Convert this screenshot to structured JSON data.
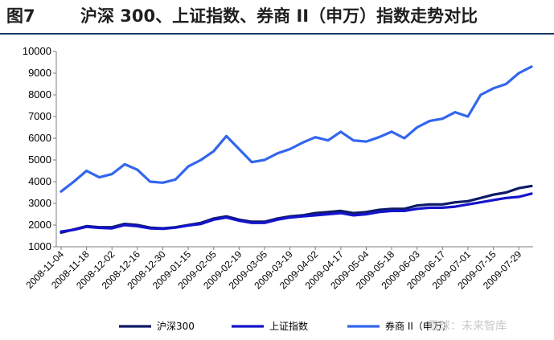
{
  "figure_label": "图7",
  "chart_data": {
    "type": "line",
    "title": "沪深 300、上证指数、券商 II（申万）指数走势对比",
    "xlabel": "",
    "ylabel": "",
    "ylim": [
      1000,
      10000
    ],
    "yticks": [
      1000,
      2000,
      3000,
      4000,
      5000,
      6000,
      7000,
      8000,
      9000,
      10000
    ],
    "x": [
      "2008-11-04",
      "2008-11-11",
      "2008-11-18",
      "2008-11-25",
      "2008-12-02",
      "2008-12-09",
      "2008-12-16",
      "2008-12-23",
      "2008-12-30",
      "2009-01-08",
      "2009-01-15",
      "2009-01-22",
      "2009-02-05",
      "2009-02-12",
      "2009-02-19",
      "2009-02-26",
      "2009-03-05",
      "2009-03-12",
      "2009-03-19",
      "2009-03-26",
      "2009-04-02",
      "2009-04-09",
      "2009-04-17",
      "2009-04-24",
      "2009-05-04",
      "2009-05-11",
      "2009-05-18",
      "2009-05-25",
      "2009-06-03",
      "2009-06-10",
      "2009-06-17",
      "2009-06-24",
      "2009-07-01",
      "2009-07-08",
      "2009-07-15",
      "2009-07-22",
      "2009-07-29",
      "2009-08-03"
    ],
    "xticks": [
      "2008-11-04",
      "2008-11-18",
      "2008-12-02",
      "2008-12-16",
      "2008-12-30",
      "2009-01-15",
      "2009-02-05",
      "2009-02-19",
      "2009-03-05",
      "2009-03-19",
      "2009-04-02",
      "2009-04-17",
      "2009-05-04",
      "2009-05-18",
      "2009-06-03",
      "2009-06-17",
      "2009-07-01",
      "2009-07-15",
      "2009-07-29"
    ],
    "series": [
      {
        "name": "沪深300",
        "color": "#0d1a66",
        "values": [
          1650,
          1800,
          1950,
          1900,
          1900,
          2050,
          2000,
          1880,
          1850,
          1900,
          2000,
          2100,
          2300,
          2400,
          2250,
          2150,
          2150,
          2300,
          2400,
          2450,
          2550,
          2600,
          2650,
          2550,
          2600,
          2700,
          2750,
          2750,
          2900,
          2950,
          2950,
          3050,
          3100,
          3250,
          3400,
          3500,
          3700,
          3800
        ]
      },
      {
        "name": "上证指数",
        "color": "#1414cc",
        "values": [
          1700,
          1780,
          1920,
          1870,
          1850,
          2000,
          1950,
          1850,
          1830,
          1880,
          1980,
          2050,
          2250,
          2350,
          2200,
          2100,
          2100,
          2250,
          2350,
          2400,
          2450,
          2500,
          2550,
          2450,
          2500,
          2600,
          2650,
          2650,
          2750,
          2800,
          2800,
          2850,
          2950,
          3050,
          3150,
          3250,
          3300,
          3450
        ]
      },
      {
        "name": "券商 II（申万）",
        "color": "#3366ee",
        "values": [
          3550,
          4000,
          4500,
          4200,
          4350,
          4800,
          4550,
          4000,
          3950,
          4100,
          4700,
          5000,
          5400,
          6100,
          5500,
          4900,
          5000,
          5300,
          5500,
          5800,
          6050,
          5900,
          6300,
          5900,
          5850,
          6050,
          6300,
          6000,
          6500,
          6800,
          6900,
          7200,
          7000,
          8000,
          8300,
          8500,
          9000,
          9300
        ]
      }
    ]
  },
  "watermark": "雪球：未来智库"
}
